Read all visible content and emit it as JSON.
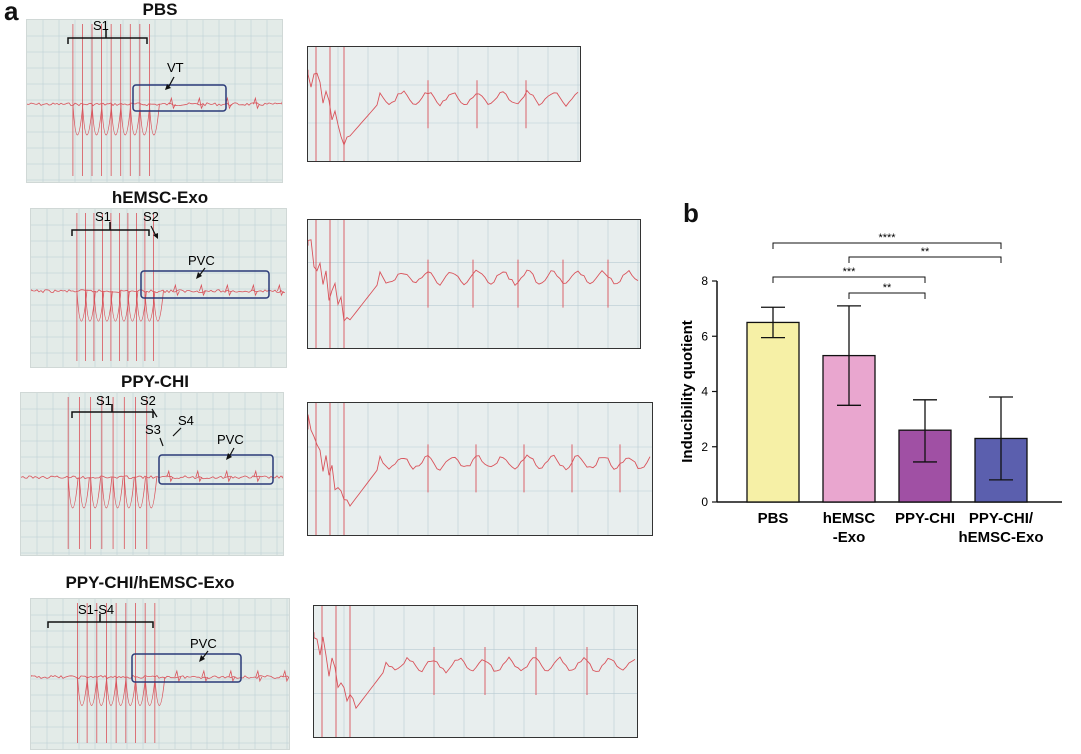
{
  "figure": {
    "panel_a_letter": "a",
    "panel_b_letter": "b"
  },
  "panels": [
    {
      "title": "PBS",
      "labels": [
        "S1",
        "VT"
      ]
    },
    {
      "title": "hEMSC-Exo",
      "labels": [
        "S1",
        "S2",
        "PVC"
      ]
    },
    {
      "title": "PPY-CHI",
      "labels": [
        "S1",
        "S2",
        "S3",
        "S4",
        "PVC"
      ]
    },
    {
      "title": "PPY-CHI/hEMSC-Exo",
      "labels": [
        "S1-S4",
        "PVC"
      ]
    }
  ],
  "colors": {
    "trace": "#d9535b",
    "grid": "#b9ccd3",
    "box": "#2b3a78",
    "bar_colors": [
      "#f6f0a6",
      "#e9a6cf",
      "#a050a4",
      "#5b5fae"
    ]
  },
  "chart_data": {
    "type": "bar",
    "categories": [
      "PBS",
      "hEMSC\n-Exo",
      "PPY-CHI",
      "PPY-CHI/\nhEMSC-Exo"
    ],
    "values": [
      6.5,
      5.3,
      2.6,
      2.3
    ],
    "error_high": [
      7.05,
      7.1,
      3.7,
      3.8
    ],
    "error_low": [
      5.95,
      3.5,
      1.45,
      0.8
    ],
    "ylabel": "Inducibility quotient",
    "ylim": [
      0,
      8
    ],
    "yticks": [
      0,
      2,
      4,
      6,
      8
    ],
    "significance": [
      {
        "from": 0,
        "to": 3,
        "label": "****"
      },
      {
        "from": 1,
        "to": 3,
        "label": "**"
      },
      {
        "from": 0,
        "to": 2,
        "label": "***"
      },
      {
        "from": 1,
        "to": 2,
        "label": "**"
      }
    ]
  }
}
